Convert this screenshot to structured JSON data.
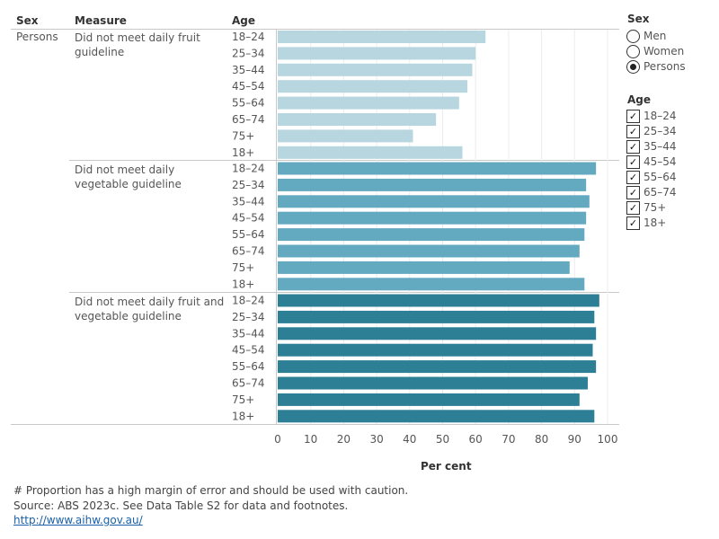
{
  "headers": {
    "sex": "Sex",
    "measure": "Measure",
    "age": "Age"
  },
  "sex_value": "Persons",
  "chart_data": {
    "type": "bar",
    "orientation": "horizontal",
    "xlabel": "Per cent",
    "xlim": [
      0,
      100
    ],
    "xticks": [
      "0",
      "10",
      "20",
      "30",
      "40",
      "50",
      "60",
      "70",
      "80",
      "90",
      "100"
    ],
    "categories": [
      "18–24",
      "25–34",
      "35–44",
      "45–54",
      "55–64",
      "65–74",
      "75+",
      "18+"
    ],
    "panels": [
      {
        "measure": "Did not meet daily fruit guideline",
        "color": "#b7d6e0",
        "values": [
          63,
          60,
          59,
          57.5,
          55,
          48,
          41,
          56
        ]
      },
      {
        "measure": "Did not meet daily vegetable guideline",
        "color": "#63a9c0",
        "values": [
          96.5,
          93.5,
          94.5,
          93.5,
          93,
          91.5,
          88.5,
          93
        ]
      },
      {
        "measure": "Did not meet daily fruit and vegetable guideline",
        "color": "#2d7f96",
        "values": [
          97.5,
          96,
          96.5,
          95.5,
          96.5,
          94,
          91.5,
          96
        ]
      }
    ]
  },
  "footer": {
    "note": "# Proportion has a high margin of error and should be used with caution.",
    "source": "Source: ABS 2023c. See Data Table S2 for data and footnotes.",
    "link": "http://www.aihw.gov.au/"
  },
  "legend": {
    "sex_title": "Sex",
    "sex_options": [
      {
        "label": "Men",
        "selected": false
      },
      {
        "label": "Women",
        "selected": false
      },
      {
        "label": "Persons",
        "selected": true
      }
    ],
    "age_title": "Age",
    "age_options": [
      {
        "label": "18–24",
        "checked": true
      },
      {
        "label": "25–34",
        "checked": true
      },
      {
        "label": "35–44",
        "checked": true
      },
      {
        "label": "45–54",
        "checked": true
      },
      {
        "label": "55–64",
        "checked": true
      },
      {
        "label": "65–74",
        "checked": true
      },
      {
        "label": "75+",
        "checked": true
      },
      {
        "label": "18+",
        "checked": true
      }
    ],
    "check_mark": "✓"
  }
}
